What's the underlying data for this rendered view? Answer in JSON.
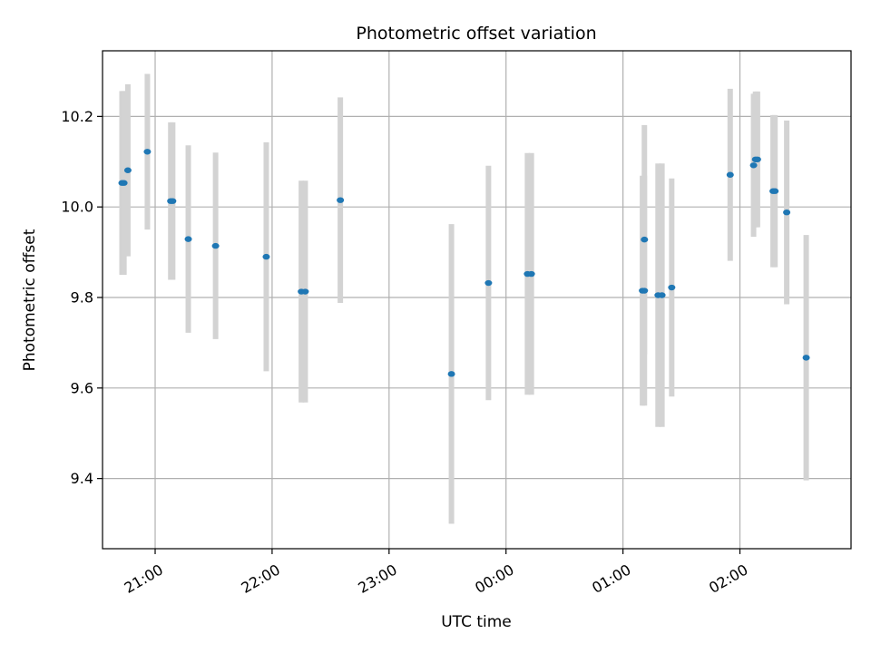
{
  "chart_data": {
    "type": "scatter",
    "title": "Photometric offset variation",
    "xlabel": "UTC time",
    "ylabel": "Photometric offset",
    "x_ticks": [
      "21:00",
      "22:00",
      "23:00",
      "00:00",
      "01:00",
      "02:00"
    ],
    "y_ticks": [
      "9.4",
      "9.6",
      "9.8",
      "10.0",
      "10.2"
    ],
    "xlim": [
      "20:33",
      "02:57"
    ],
    "ylim": [
      9.245,
      10.345
    ],
    "grid": true,
    "colors": {
      "points": "#1f77b4",
      "errorbars": "#d3d3d3",
      "grid": "#b0b0b0"
    },
    "series": [
      {
        "points": [
          {
            "x": "20:43",
            "y": 10.053,
            "yerr": 0.203
          },
          {
            "x": "20:44",
            "y": 10.053,
            "yerr": 0.203
          },
          {
            "x": "20:46",
            "y": 10.081,
            "yerr": 0.19
          },
          {
            "x": "20:56",
            "y": 10.122,
            "yerr": 0.172
          },
          {
            "x": "21:08",
            "y": 10.013,
            "yerr": 0.174
          },
          {
            "x": "21:09",
            "y": 10.013,
            "yerr": 0.174
          },
          {
            "x": "21:17",
            "y": 9.929,
            "yerr": 0.207
          },
          {
            "x": "21:31",
            "y": 9.914,
            "yerr": 0.206
          },
          {
            "x": "21:57",
            "y": 9.89,
            "yerr": 0.253
          },
          {
            "x": "22:15",
            "y": 9.813,
            "yerr": 0.245
          },
          {
            "x": "22:17",
            "y": 9.813,
            "yerr": 0.245
          },
          {
            "x": "22:35",
            "y": 10.015,
            "yerr": 0.227
          },
          {
            "x": "23:32",
            "y": 9.631,
            "yerr": 0.331
          },
          {
            "x": "23:51",
            "y": 9.832,
            "yerr": 0.259
          },
          {
            "x": "00:11",
            "y": 9.852,
            "yerr": 0.267
          },
          {
            "x": "00:13",
            "y": 9.852,
            "yerr": 0.267
          },
          {
            "x": "01:10",
            "y": 9.815,
            "yerr": 0.254
          },
          {
            "x": "01:11",
            "y": 9.815,
            "yerr": 0.254
          },
          {
            "x": "01:11",
            "y": 9.928,
            "yerr": 0.253
          },
          {
            "x": "01:18",
            "y": 9.805,
            "yerr": 0.291
          },
          {
            "x": "01:20",
            "y": 9.805,
            "yerr": 0.291
          },
          {
            "x": "01:25",
            "y": 9.822,
            "yerr": 0.241
          },
          {
            "x": "01:55",
            "y": 10.071,
            "yerr": 0.19
          },
          {
            "x": "02:07",
            "y": 10.092,
            "yerr": 0.158
          },
          {
            "x": "02:08",
            "y": 10.105,
            "yerr": 0.15
          },
          {
            "x": "02:09",
            "y": 10.105,
            "yerr": 0.15
          },
          {
            "x": "02:17",
            "y": 10.035,
            "yerr": 0.168
          },
          {
            "x": "02:18",
            "y": 10.035,
            "yerr": 0.168
          },
          {
            "x": "02:24",
            "y": 9.988,
            "yerr": 0.203
          },
          {
            "x": "02:34",
            "y": 9.667,
            "yerr": 0.271
          }
        ]
      }
    ]
  }
}
